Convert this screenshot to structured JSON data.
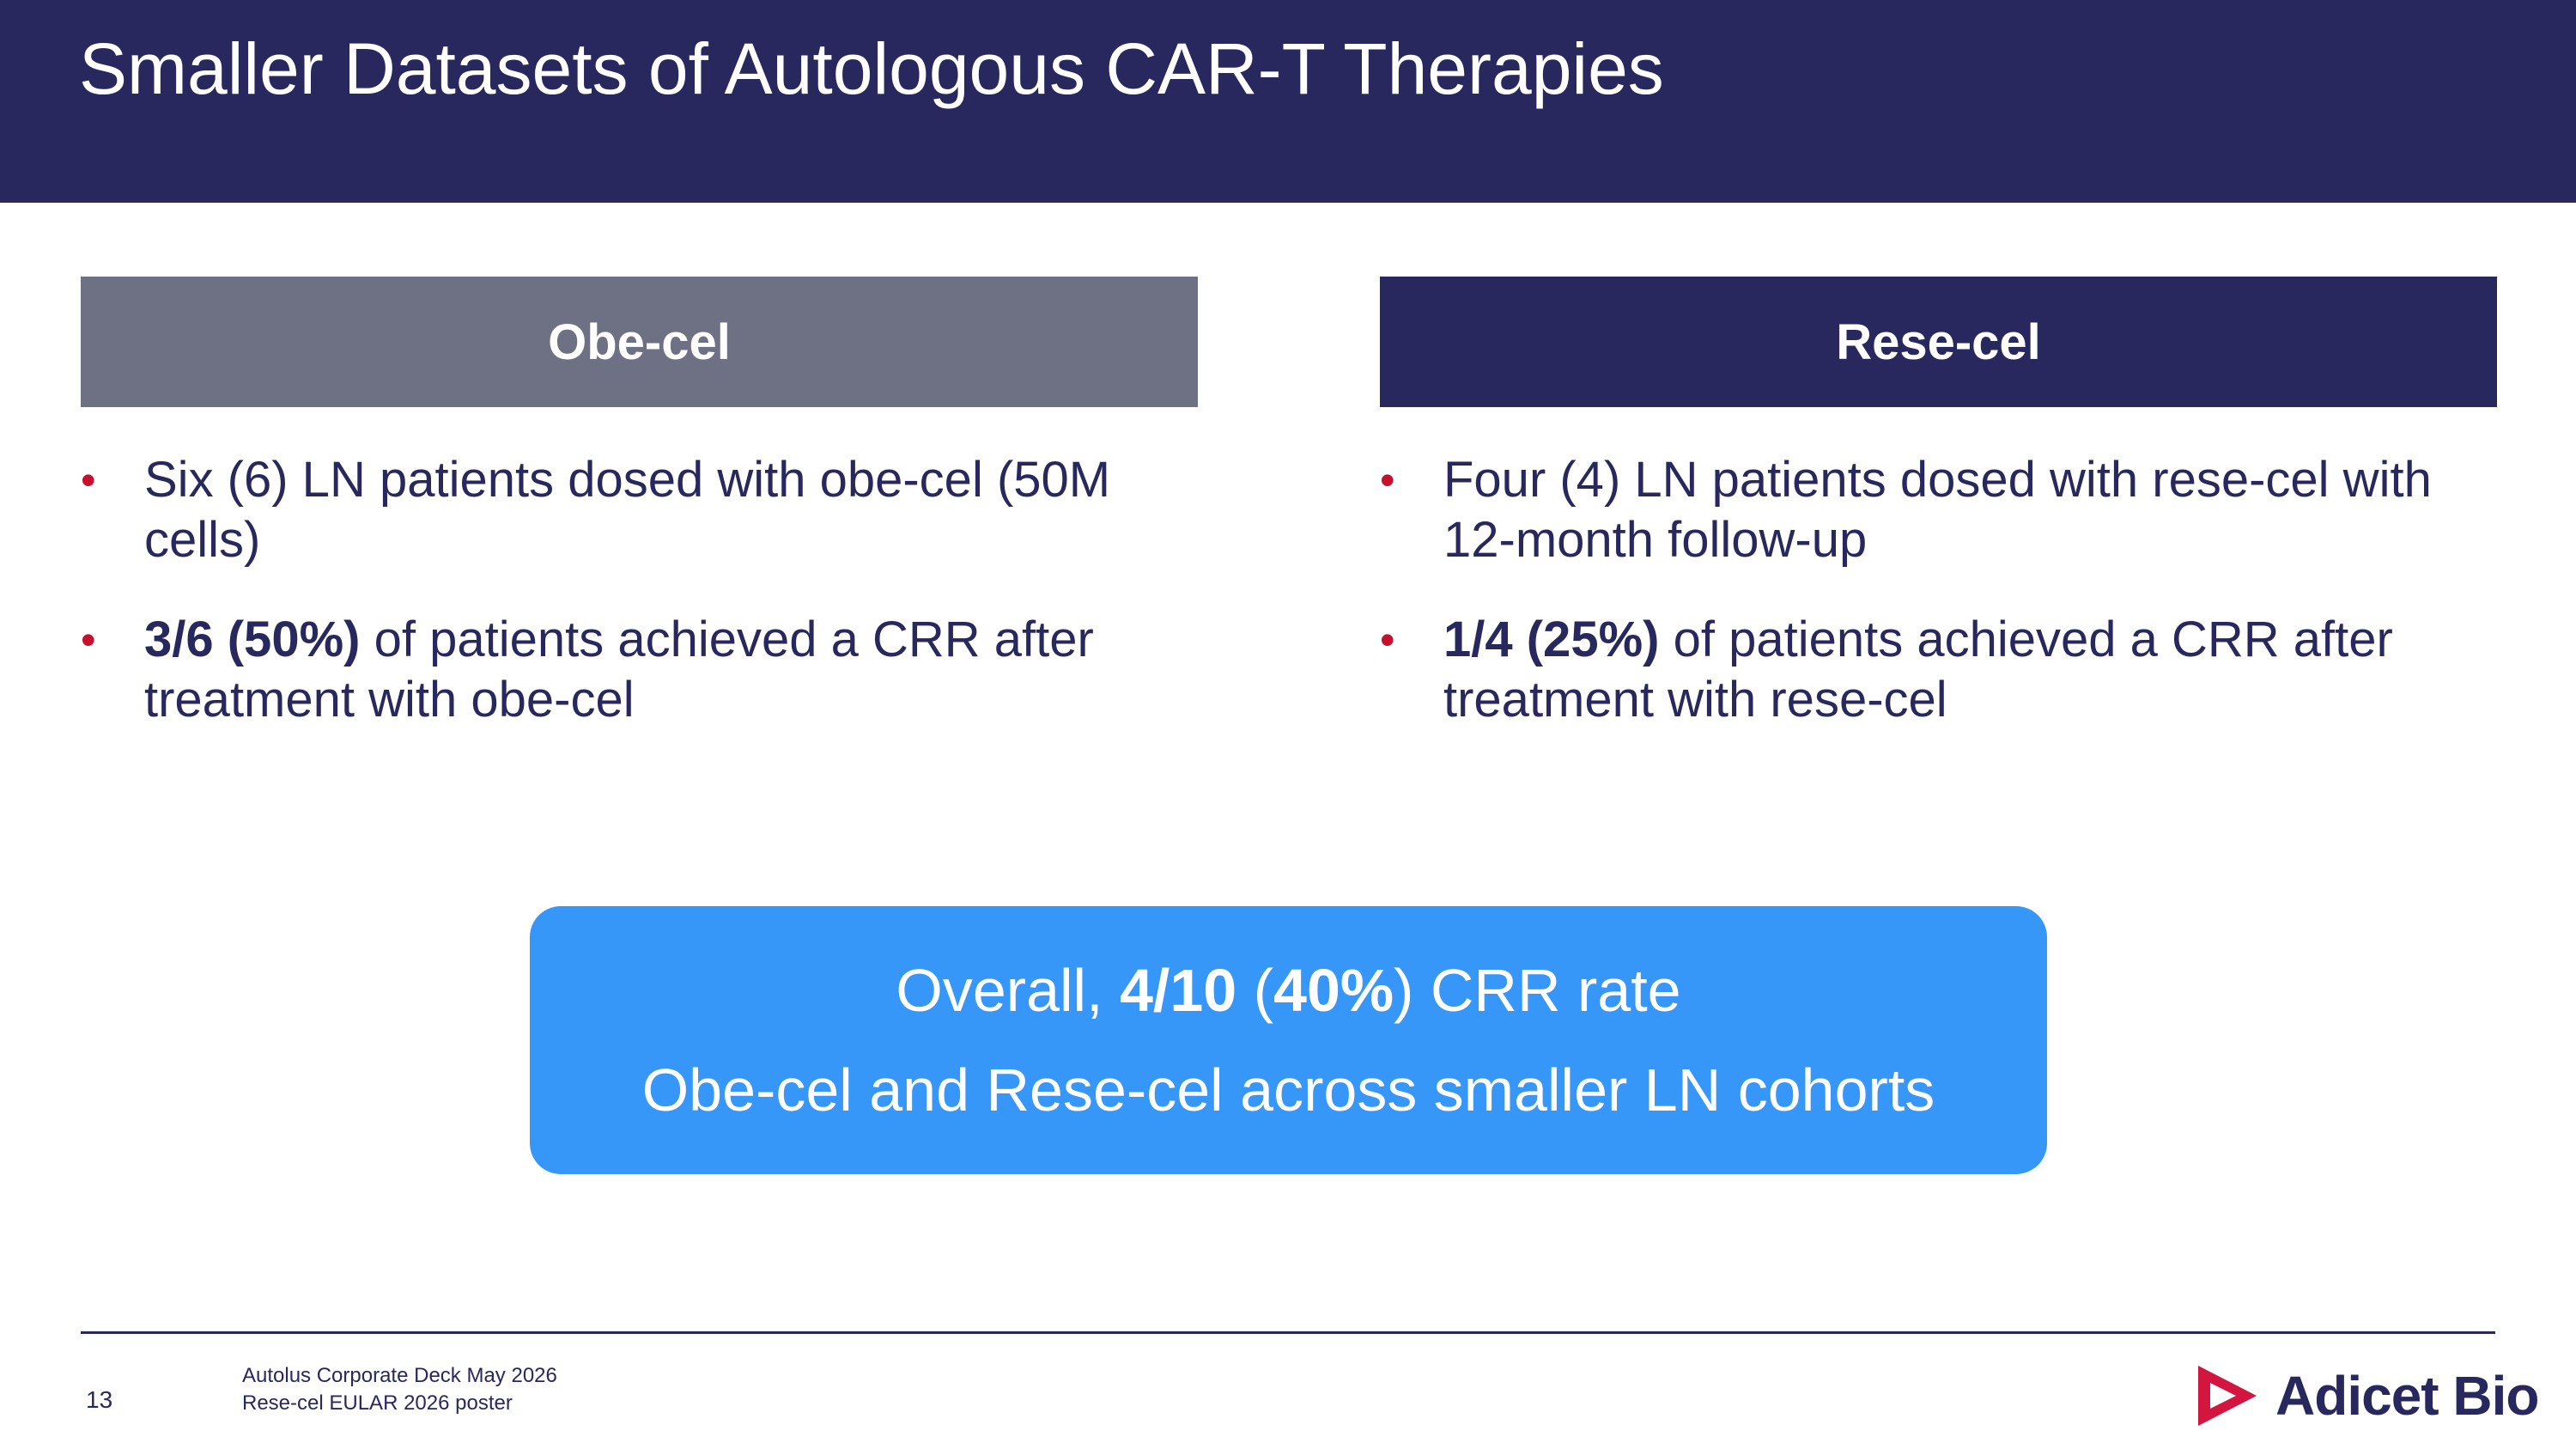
{
  "header": {
    "title": "Smaller Datasets of Autologous CAR-T Therapies"
  },
  "columns": [
    {
      "heading": "Obe-cel",
      "bullets": [
        {
          "text": "Six (6) LN patients dosed with obe-cel (50M cells)"
        },
        {
          "bold": "3/6 (50%)",
          "text": " of patients achieved a CRR after treatment with obe-cel"
        }
      ]
    },
    {
      "heading": "Rese-cel",
      "bullets": [
        {
          "text": "Four (4) LN patients dosed with rese-cel with 12-month follow-up"
        },
        {
          "bold": "1/4 (25%)",
          "text": " of patients achieved a CRR after treatment with rese-cel"
        }
      ]
    }
  ],
  "callout": {
    "line1": {
      "prefix": "Overall, ",
      "fraction": "4/10",
      "mid": " (",
      "percent": "40%",
      "suffix": ") CRR rate"
    },
    "line2": "Obe-cel and Rese-cel across smaller LN cohorts"
  },
  "footer": {
    "page_number": "13",
    "source_line1": "Autolus Corporate Deck May 2026",
    "source_line2": "Rese-cel EULAR 2026 poster",
    "logo_text": "Adicet Bio",
    "bullet_color": "#c8102e",
    "brand_color": "#28285e",
    "callout_color": "#3797f8"
  }
}
